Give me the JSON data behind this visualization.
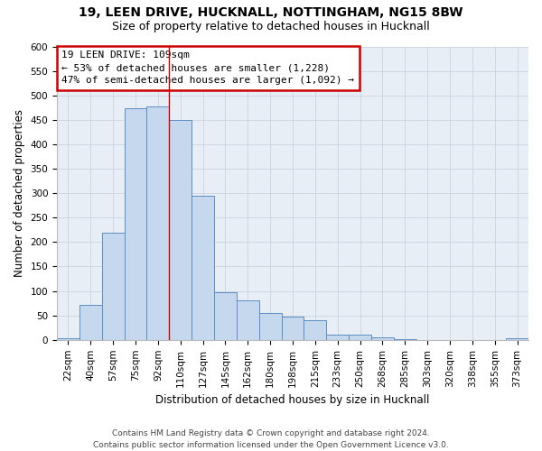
{
  "title1": "19, LEEN DRIVE, HUCKNALL, NOTTINGHAM, NG15 8BW",
  "title2": "Size of property relative to detached houses in Hucknall",
  "xlabel": "Distribution of detached houses by size in Hucknall",
  "ylabel": "Number of detached properties",
  "categories": [
    "22sqm",
    "40sqm",
    "57sqm",
    "75sqm",
    "92sqm",
    "110sqm",
    "127sqm",
    "145sqm",
    "162sqm",
    "180sqm",
    "198sqm",
    "215sqm",
    "233sqm",
    "250sqm",
    "268sqm",
    "285sqm",
    "303sqm",
    "320sqm",
    "338sqm",
    "355sqm",
    "373sqm"
  ],
  "values": [
    3,
    72,
    220,
    473,
    478,
    450,
    295,
    97,
    80,
    55,
    47,
    41,
    11,
    11,
    5,
    1,
    0,
    0,
    0,
    0,
    4
  ],
  "bar_color": "#c5d8ee",
  "bar_edge_color": "#5b8ec4",
  "grid_color": "#c8d4e0",
  "bg_color": "#e8eef5",
  "annotation_text": "19 LEEN DRIVE: 109sqm\n← 53% of detached houses are smaller (1,228)\n47% of semi-detached houses are larger (1,092) →",
  "annotation_box_color": "#ffffff",
  "annotation_border_color": "#cc0000",
  "red_line_color": "#cc0000",
  "footer": "Contains HM Land Registry data © Crown copyright and database right 2024.\nContains public sector information licensed under the Open Government Licence v3.0.",
  "ylim": [
    0,
    600
  ],
  "yticks": [
    0,
    50,
    100,
    150,
    200,
    250,
    300,
    350,
    400,
    450,
    500,
    550,
    600
  ],
  "title1_fontsize": 10,
  "title2_fontsize": 9,
  "xlabel_fontsize": 8.5,
  "ylabel_fontsize": 8.5,
  "tick_fontsize": 7.5,
  "footer_fontsize": 6.5,
  "annotation_fontsize": 8,
  "red_line_bar_index": 5
}
